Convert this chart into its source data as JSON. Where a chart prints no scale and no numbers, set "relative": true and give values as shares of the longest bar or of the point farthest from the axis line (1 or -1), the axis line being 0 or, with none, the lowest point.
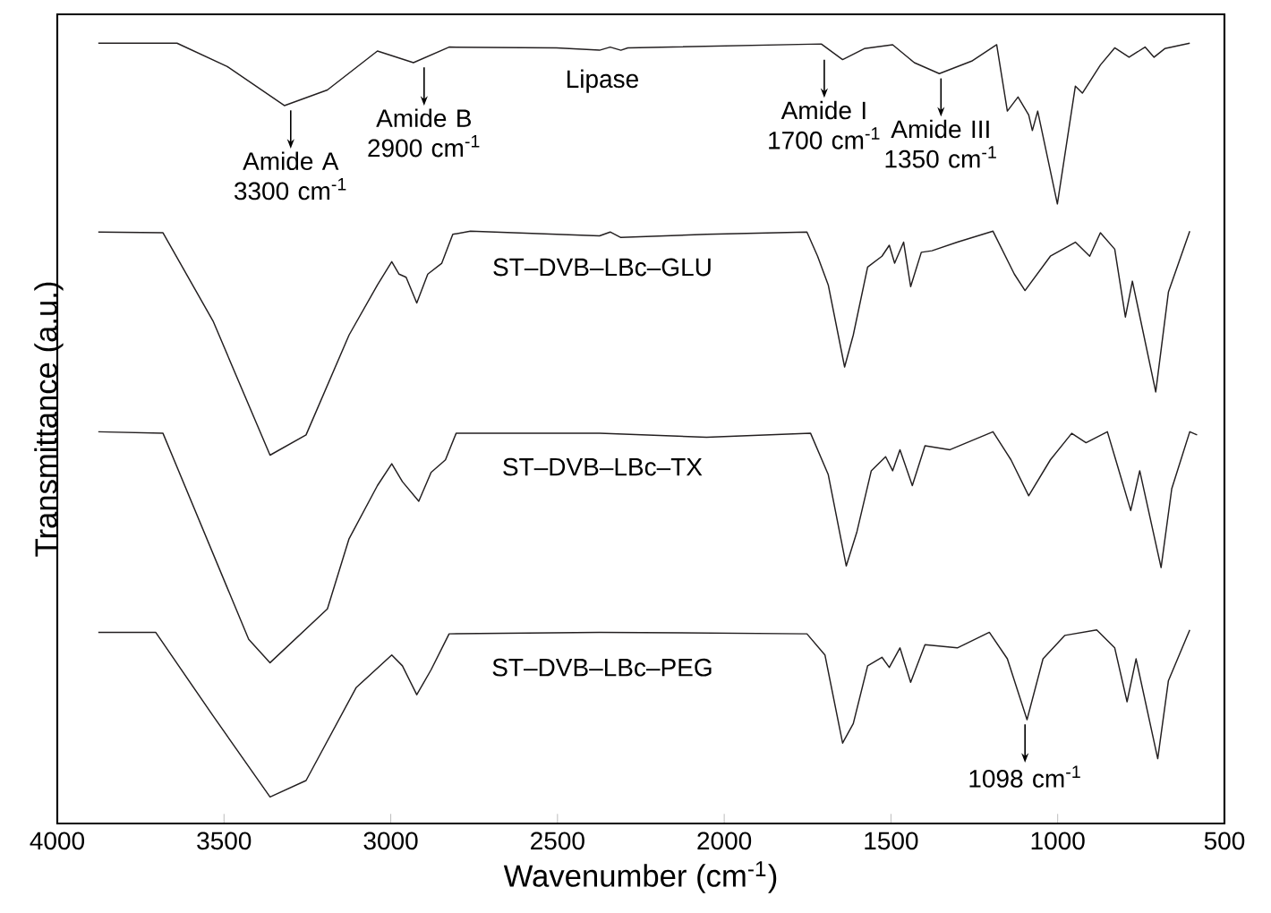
{
  "chart_data": {
    "type": "line",
    "relative": true,
    "xlabel": "Wavenumber (cm$^{-1}$)",
    "ylabel": "Transmittance (a.u.)",
    "xlim": [
      4000,
      500
    ],
    "xticks": [
      4000,
      3500,
      3000,
      2500,
      2000,
      1500,
      1000,
      500
    ],
    "grid": false,
    "marker": "none",
    "line_style": "solid",
    "series": [
      {
        "name": "Lipase",
        "color": "#231f20",
        "x": [
          3877,
          3641,
          3490,
          3319,
          3190,
          3040,
          2932,
          2825,
          2503,
          2374,
          2342,
          2310,
          2289,
          1709,
          1645,
          1580,
          1495,
          1430,
          1355,
          1258,
          1183,
          1151,
          1119,
          1087,
          1076,
          1060,
          1001,
          947,
          926,
          872,
          829,
          786,
          738,
          711,
          679,
          604
        ],
        "values": [
          1.0,
          1.0,
          0.97,
          0.92,
          0.94,
          0.99,
          0.975,
          0.995,
          0.994,
          0.991,
          0.995,
          0.991,
          0.994,
          0.999,
          0.979,
          0.993,
          0.998,
          0.975,
          0.961,
          0.977,
          0.998,
          0.913,
          0.931,
          0.908,
          0.888,
          0.913,
          0.794,
          0.945,
          0.936,
          0.972,
          0.994,
          0.982,
          0.995,
          0.982,
          0.993,
          1.0
        ]
      },
      {
        "name": "ST–DVB–LBc–GLU",
        "color": "#231f20",
        "x": [
          3877,
          3683,
          3533,
          3362,
          3254,
          3125,
          3040,
          2997,
          2975,
          2954,
          2922,
          2889,
          2847,
          2814,
          2761,
          2374,
          2342,
          2310,
          2053,
          1752,
          1720,
          1688,
          1639,
          1613,
          1570,
          1527,
          1505,
          1489,
          1462,
          1441,
          1409,
          1377,
          1301,
          1194,
          1130,
          1098,
          1022,
          947,
          904,
          872,
          829,
          797,
          776,
          706,
          668,
          604
        ],
        "values": [
          0.758,
          0.757,
          0.644,
          0.472,
          0.498,
          0.626,
          0.69,
          0.72,
          0.704,
          0.7,
          0.667,
          0.704,
          0.718,
          0.755,
          0.759,
          0.753,
          0.758,
          0.751,
          0.755,
          0.758,
          0.727,
          0.69,
          0.585,
          0.626,
          0.713,
          0.727,
          0.741,
          0.718,
          0.745,
          0.688,
          0.732,
          0.734,
          0.745,
          0.759,
          0.704,
          0.683,
          0.727,
          0.745,
          0.727,
          0.757,
          0.736,
          0.649,
          0.695,
          0.553,
          0.681,
          0.759
        ]
      },
      {
        "name": "ST–DVB–LBc–TX",
        "color": "#231f20",
        "x": [
          3877,
          3683,
          3426,
          3362,
          3190,
          3125,
          3040,
          2997,
          2965,
          2916,
          2879,
          2836,
          2804,
          2374,
          2053,
          1741,
          1688,
          1634,
          1602,
          1559,
          1516,
          1495,
          1473,
          1436,
          1398,
          1323,
          1194,
          1140,
          1087,
          1022,
          958,
          915,
          851,
          819,
          781,
          754,
          690,
          658,
          604,
          582
        ],
        "values": [
          0.502,
          0.5,
          0.236,
          0.206,
          0.275,
          0.365,
          0.433,
          0.461,
          0.438,
          0.413,
          0.45,
          0.466,
          0.5,
          0.5,
          0.495,
          0.5,
          0.447,
          0.33,
          0.374,
          0.452,
          0.47,
          0.452,
          0.479,
          0.433,
          0.484,
          0.479,
          0.502,
          0.466,
          0.42,
          0.466,
          0.5,
          0.488,
          0.502,
          0.456,
          0.401,
          0.452,
          0.328,
          0.429,
          0.502,
          0.498
        ]
      },
      {
        "name": "ST–DVB–LBc–PEG",
        "color": "#231f20",
        "x": [
          3877,
          3705,
          3533,
          3362,
          3254,
          3104,
          2997,
          2965,
          2922,
          2879,
          2825,
          2374,
          1752,
          1698,
          1645,
          1613,
          1570,
          1527,
          1505,
          1473,
          1441,
          1398,
          1301,
          1205,
          1151,
          1092,
          1044,
          979,
          883,
          829,
          792,
          765,
          700,
          668,
          604
        ],
        "values": [
          0.245,
          0.245,
          0.138,
          0.034,
          0.055,
          0.174,
          0.216,
          0.202,
          0.165,
          0.197,
          0.243,
          0.245,
          0.243,
          0.216,
          0.103,
          0.128,
          0.202,
          0.213,
          0.2,
          0.225,
          0.181,
          0.229,
          0.225,
          0.245,
          0.211,
          0.133,
          0.211,
          0.241,
          0.248,
          0.225,
          0.156,
          0.211,
          0.083,
          0.183,
          0.248
        ]
      }
    ],
    "annotations": [
      {
        "text": "Amide A 3300 cm$^{-1}$",
        "x": 3300,
        "y": 0.92
      },
      {
        "text": "Amide B 2900 cm$^{-1}$",
        "x": 2900,
        "y": 0.975
      },
      {
        "text": "Amide I 1700 cm$^{-1}$",
        "x": 1700,
        "y": 0.985
      },
      {
        "text": "Amide III 1350 cm$^{-1}$",
        "x": 1350,
        "y": 0.961
      },
      {
        "text": "1098 cm$^{-1}$",
        "x": 1098,
        "y": 0.133
      }
    ]
  }
}
